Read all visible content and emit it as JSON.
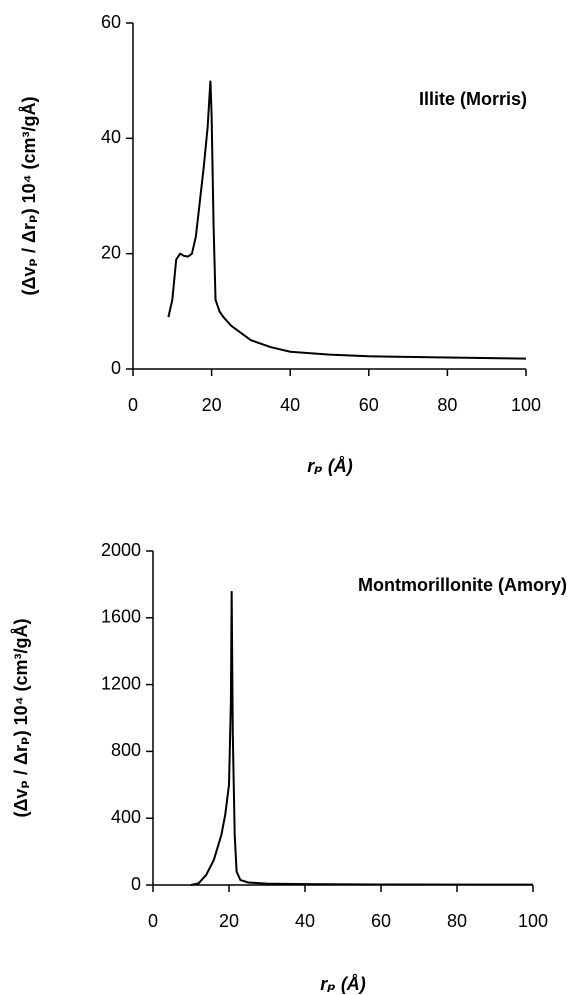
{
  "chart_data": [
    {
      "type": "line",
      "annotation": "Illite (Morris)",
      "xlabel": "rₚ (Å)",
      "ylabel": "(Δvₚ / Δrₚ) 10⁴  (cm³/gÅ)",
      "x": [
        9,
        10,
        11,
        12,
        13,
        14,
        15,
        16,
        17,
        18,
        19,
        19.7,
        20,
        20.5,
        21,
        22,
        23,
        25,
        30,
        35,
        40,
        50,
        60,
        80,
        100
      ],
      "values": [
        9,
        12,
        19,
        20,
        19.6,
        19.5,
        20,
        23,
        29,
        35,
        42,
        50,
        44,
        25,
        12,
        10,
        9,
        7.5,
        5,
        3.8,
        3,
        2.5,
        2.2,
        2,
        1.8
      ],
      "color": "#000000",
      "xlim": [
        0,
        100
      ],
      "xticks": [
        0,
        20,
        40,
        60,
        80,
        100
      ],
      "ylim": [
        0,
        60
      ],
      "yticks": [
        0,
        20,
        40,
        60
      ]
    },
    {
      "type": "line",
      "annotation": "Montmorillonite (Amory)",
      "xlabel": "rₚ (Å)",
      "ylabel": "(Δvₚ / Δrₚ) 10⁴ (cm³/gÅ)",
      "x": [
        10,
        12,
        14,
        16,
        18,
        19,
        20,
        20.5,
        20.7,
        21,
        21.5,
        22,
        23,
        25,
        30,
        40,
        60,
        100
      ],
      "values": [
        0,
        10,
        60,
        150,
        300,
        420,
        600,
        1100,
        1760,
        900,
        300,
        80,
        30,
        15,
        8,
        5,
        3,
        2
      ],
      "color": "#000000",
      "xlim": [
        0,
        100
      ],
      "xticks": [
        0,
        20,
        40,
        60,
        80,
        100
      ],
      "ylim": [
        0,
        2000
      ],
      "yticks": [
        0,
        400,
        800,
        1200,
        1600,
        2000
      ]
    }
  ]
}
